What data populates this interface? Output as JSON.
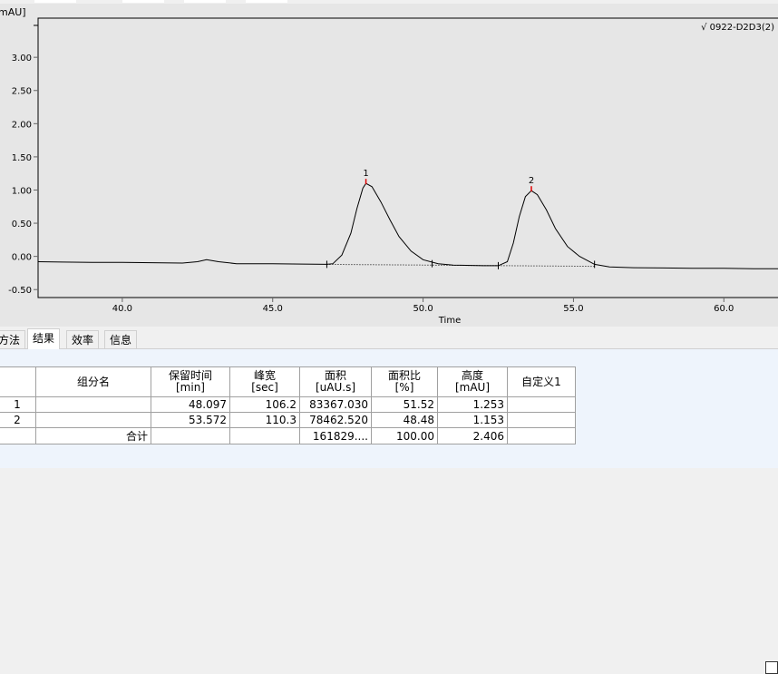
{
  "chart_data": {
    "type": "line",
    "ylabel": "mAU]",
    "xlabel": "Time",
    "xlim": [
      37.2,
      61.8
    ],
    "ylim": [
      -0.62,
      3.59
    ],
    "xticks": [
      "40.0",
      "45.0",
      "50.0",
      "55.0",
      "60.0"
    ],
    "yticks": [
      "3.00",
      "2.50",
      "2.00",
      "1.50",
      "1.00",
      "0.50",
      "0.00",
      "-0.50"
    ],
    "legend": "√ 0922-D2D3(2)",
    "legend_position": "top-right",
    "grid": false,
    "series": [
      {
        "color": "#000000",
        "points": [
          [
            37.2,
            -0.08
          ],
          [
            38,
            -0.085
          ],
          [
            39,
            -0.09
          ],
          [
            40,
            -0.09
          ],
          [
            41,
            -0.095
          ],
          [
            42,
            -0.1
          ],
          [
            42.5,
            -0.08
          ],
          [
            42.8,
            -0.05
          ],
          [
            43.2,
            -0.08
          ],
          [
            43.8,
            -0.11
          ],
          [
            45,
            -0.11
          ],
          [
            46,
            -0.115
          ],
          [
            46.8,
            -0.12
          ],
          [
            47.0,
            -0.11
          ],
          [
            47.3,
            0.02
          ],
          [
            47.6,
            0.35
          ],
          [
            47.8,
            0.72
          ],
          [
            48.0,
            1.03
          ],
          [
            48.1,
            1.1
          ],
          [
            48.3,
            1.05
          ],
          [
            48.6,
            0.82
          ],
          [
            48.9,
            0.55
          ],
          [
            49.2,
            0.3
          ],
          [
            49.6,
            0.08
          ],
          [
            50,
            -0.05
          ],
          [
            50.5,
            -0.11
          ],
          [
            51,
            -0.13
          ],
          [
            52,
            -0.14
          ],
          [
            52.5,
            -0.14
          ],
          [
            52.8,
            -0.08
          ],
          [
            53.0,
            0.2
          ],
          [
            53.2,
            0.6
          ],
          [
            53.4,
            0.9
          ],
          [
            53.6,
            0.99
          ],
          [
            53.8,
            0.93
          ],
          [
            54.1,
            0.7
          ],
          [
            54.4,
            0.42
          ],
          [
            54.8,
            0.15
          ],
          [
            55.2,
            0.0
          ],
          [
            55.7,
            -0.12
          ],
          [
            56.2,
            -0.16
          ],
          [
            57,
            -0.17
          ],
          [
            58,
            -0.175
          ],
          [
            59,
            -0.18
          ],
          [
            60,
            -0.18
          ],
          [
            61,
            -0.185
          ],
          [
            61.8,
            -0.185
          ]
        ]
      }
    ],
    "peaks": [
      {
        "label": "1",
        "x": 48.1,
        "y": 1.1
      },
      {
        "label": "2",
        "x": 53.6,
        "y": 0.99
      }
    ],
    "baseline": [
      [
        46.8,
        -0.12
      ],
      [
        55.7,
        -0.15
      ]
    ],
    "event_marks": [
      46.8,
      50.3,
      52.5,
      55.7
    ],
    "peak_marker_color": "#e00000"
  },
  "tabs": [
    "方法",
    "结果",
    "效率",
    "信息"
  ],
  "table": {
    "headers": [
      "",
      "组分名",
      "保留时间\n[min]",
      "峰宽\n[sec]",
      "面积\n[uAU.s]",
      "面积比\n[%]",
      "高度\n[mAU]",
      "自定义1"
    ],
    "rows": [
      [
        "1",
        "",
        "48.097",
        "106.2",
        "83367.030",
        "51.52",
        "1.253",
        ""
      ],
      [
        "2",
        "",
        "53.572",
        "110.3",
        "78462.520",
        "48.48",
        "1.153",
        ""
      ],
      [
        "",
        "合计",
        "",
        "",
        "161829....",
        "100.00",
        "2.406",
        ""
      ]
    ]
  }
}
